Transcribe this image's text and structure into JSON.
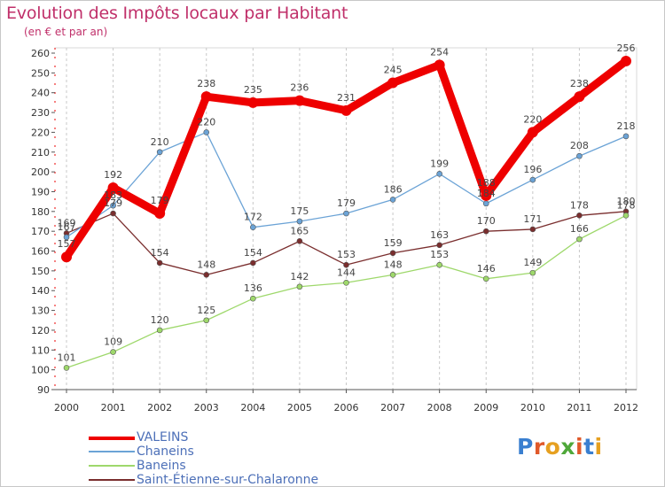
{
  "title": "Evolution des Impôts locaux par Habitant",
  "subtitle": "(en € et par an)",
  "logo": {
    "text": "Proxiti",
    "letter_colors": [
      "#3a7fd0",
      "#e0592a",
      "#e6a020",
      "#4fa83a",
      "#e0592a",
      "#3a7fd0",
      "#e6a020"
    ]
  },
  "chart_data": {
    "type": "line",
    "title": "Evolution des Impôts locaux par Habitant",
    "subtitle": "(en € et par an)",
    "xlabel": "",
    "ylabel": "",
    "ylim": [
      90,
      260
    ],
    "yticks": [
      90,
      100,
      110,
      120,
      130,
      140,
      150,
      160,
      170,
      180,
      190,
      200,
      210,
      220,
      230,
      240,
      250,
      260
    ],
    "x": [
      "2000",
      "2001",
      "2002",
      "2003",
      "2004",
      "2005",
      "2006",
      "2007",
      "2008",
      "2009",
      "2010",
      "2011",
      "2012"
    ],
    "grid": "vertical dashed",
    "legend_position": "bottom-left",
    "series": [
      {
        "name": "Saint-Étienne-sur-Chalaronne",
        "color": "#7a2e2e",
        "values": [
          169,
          179,
          154,
          148,
          154,
          165,
          153,
          159,
          163,
          170,
          171,
          178,
          180
        ],
        "labels": [
          "169",
          "179",
          "154",
          "148",
          "154",
          "165",
          "153",
          "159",
          "163",
          "170",
          "171",
          "178",
          "180"
        ]
      },
      {
        "name": "Baneins",
        "color": "#9ed86b",
        "values": [
          101,
          109,
          120,
          125,
          136,
          142,
          144,
          148,
          153,
          146,
          149,
          166,
          178
        ],
        "labels": [
          "101",
          "109",
          "120",
          "125",
          "136",
          "142",
          "144",
          "148",
          "153",
          "146",
          "149",
          "166",
          "178"
        ]
      },
      {
        "name": "Chaneins",
        "color": "#6ba3d6",
        "values": [
          167,
          183,
          210,
          220,
          172,
          175,
          179,
          186,
          199,
          184,
          196,
          208,
          218
        ],
        "labels": [
          "167",
          "183",
          "210",
          "220",
          "172",
          "175",
          "179",
          "186",
          "199",
          "184",
          "196",
          "208",
          "218"
        ]
      },
      {
        "name": "VALEINS",
        "color": "#ee0000",
        "values": [
          157,
          192,
          179,
          238,
          235,
          236,
          231,
          245,
          254,
          188,
          220,
          238,
          256
        ],
        "labels": [
          "157",
          "192",
          "179",
          "238",
          "235",
          "236",
          "231",
          "245",
          "254",
          "188",
          "220",
          "238",
          "256"
        ]
      }
    ],
    "legend": [
      "VALEINS",
      "Chaneins",
      "Baneins",
      "Saint-Étienne-sur-Chalaronne"
    ]
  }
}
